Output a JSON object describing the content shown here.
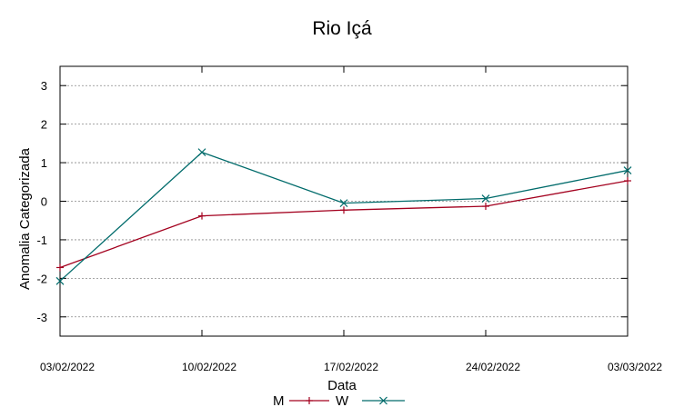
{
  "chart_data": {
    "type": "line",
    "title": "Rio Içá",
    "xlabel": "Data",
    "ylabel": "Anomalia Categorizada",
    "categories": [
      "03/02/2022",
      "10/02/2022",
      "17/02/2022",
      "24/02/2022",
      "03/03/2022"
    ],
    "ylim": [
      -3.5,
      3.5
    ],
    "yticks": [
      -3,
      -2,
      -1,
      0,
      1,
      2,
      3
    ],
    "grid": "horizontal dashed",
    "legend_position": "bottom-center",
    "series": [
      {
        "name": "M",
        "color": "#a3001e",
        "marker": "plus",
        "values": [
          -1.72,
          -0.38,
          -0.23,
          -0.13,
          0.53
        ]
      },
      {
        "name": "W",
        "color": "#006b6b",
        "marker": "x",
        "values": [
          -2.07,
          1.27,
          -0.05,
          0.07,
          0.8
        ]
      }
    ]
  }
}
